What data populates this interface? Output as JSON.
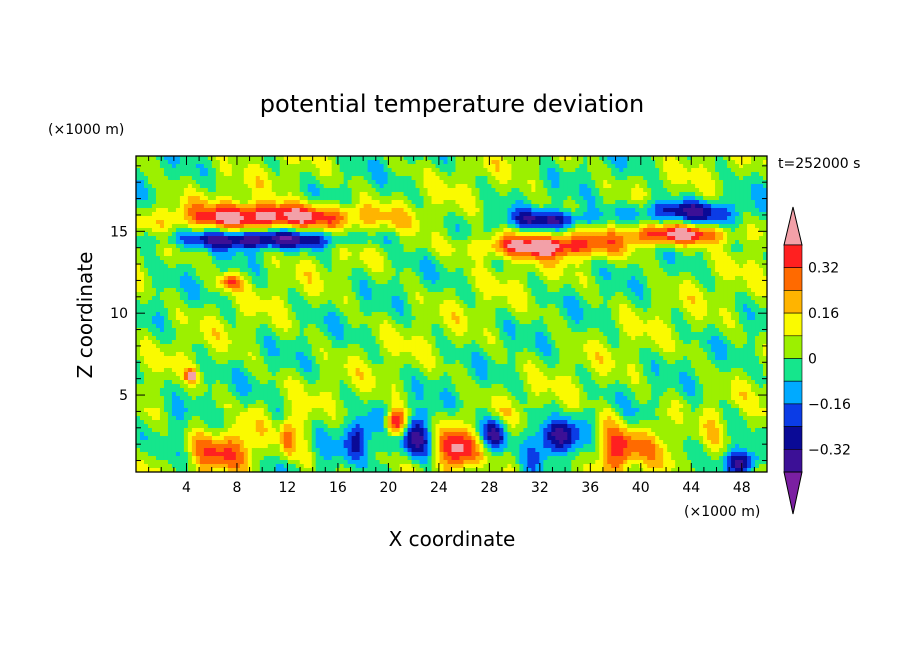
{
  "chart_data": {
    "type": "heatmap",
    "title": "potential temperature deviation",
    "xlabel": "X coordinate",
    "ylabel": "Z coordinate",
    "x_units": "(×1000 m)",
    "y_units": "(×1000 m)",
    "time_label": "t=252000 s",
    "xlim": [
      0,
      50
    ],
    "ylim": [
      0.3,
      19.6
    ],
    "x_ticks": [
      4,
      8,
      12,
      16,
      20,
      24,
      28,
      32,
      36,
      40,
      44,
      48
    ],
    "y_ticks": [
      5,
      10,
      15
    ],
    "colorbar": {
      "levels": [
        -0.48,
        -0.4,
        -0.32,
        -0.24,
        -0.16,
        -0.08,
        0,
        0.08,
        0.16,
        0.24,
        0.32,
        0.4
      ],
      "colors": [
        "#7b1fa2",
        "#3c1096",
        "#0a0a96",
        "#0b3ce6",
        "#00aaff",
        "#15e68c",
        "#9cf000",
        "#fafa00",
        "#ffb400",
        "#ff6a00",
        "#ff2020",
        "#f3a0a8"
      ],
      "tick_labels": [
        "-0.32",
        "-0.16",
        "0",
        "0.16",
        "0.32"
      ],
      "tick_values": [
        -0.32,
        -0.16,
        0,
        0.16,
        0.32
      ]
    },
    "features": [
      {
        "type": "warm",
        "x": 11,
        "z": 15.9,
        "sx": 5,
        "sz": 0.55,
        "amp": 0.48
      },
      {
        "type": "cold",
        "x": 9.5,
        "z": 14.5,
        "sx": 5.5,
        "sz": 0.4,
        "amp": -0.38
      },
      {
        "type": "warm",
        "x": 32,
        "z": 14.1,
        "sx": 4,
        "sz": 0.5,
        "amp": 0.42
      },
      {
        "type": "warm",
        "x": 43,
        "z": 14.8,
        "sx": 2.8,
        "sz": 0.45,
        "amp": 0.45
      },
      {
        "type": "cold",
        "x": 43,
        "z": 16.2,
        "sx": 3,
        "sz": 0.5,
        "amp": -0.34
      },
      {
        "type": "cold",
        "x": 33,
        "z": 15.7,
        "sx": 2.5,
        "sz": 0.4,
        "amp": -0.32
      },
      {
        "type": "warm",
        "x": 7.5,
        "z": 11.9,
        "sx": 0.7,
        "sz": 0.35,
        "amp": 0.3
      },
      {
        "type": "warm",
        "x": 4.4,
        "z": 6.2,
        "sx": 0.3,
        "sz": 0.25,
        "amp": 0.45
      },
      {
        "type": "warm",
        "x": 7,
        "z": 1.6,
        "sx": 1.3,
        "sz": 0.9,
        "amp": 0.3
      },
      {
        "type": "warm",
        "x": 12,
        "z": 2.3,
        "sx": 0.4,
        "sz": 0.9,
        "amp": 0.27
      },
      {
        "type": "warm",
        "x": 20.6,
        "z": 3.3,
        "sx": 0.6,
        "sz": 0.55,
        "amp": 0.5
      },
      {
        "type": "warm",
        "x": 25.5,
        "z": 1.6,
        "sx": 1.4,
        "sz": 0.9,
        "amp": 0.3
      },
      {
        "type": "warm",
        "x": 38.5,
        "z": 1.8,
        "sx": 1.5,
        "sz": 1.0,
        "amp": 0.32
      },
      {
        "type": "cold",
        "x": 17.5,
        "z": 2.4,
        "sx": 0.8,
        "sz": 0.9,
        "amp": -0.3
      },
      {
        "type": "cold",
        "x": 22,
        "z": 2.2,
        "sx": 0.9,
        "sz": 1.1,
        "amp": -0.36
      },
      {
        "type": "cold",
        "x": 28.5,
        "z": 2.6,
        "sx": 0.8,
        "sz": 0.7,
        "amp": -0.36
      },
      {
        "type": "cold",
        "x": 33.3,
        "z": 2.4,
        "sx": 1.1,
        "sz": 0.8,
        "amp": -0.38
      },
      {
        "type": "cold",
        "x": 48.2,
        "z": 1.0,
        "sx": 1.0,
        "sz": 0.5,
        "amp": -0.3
      }
    ]
  }
}
